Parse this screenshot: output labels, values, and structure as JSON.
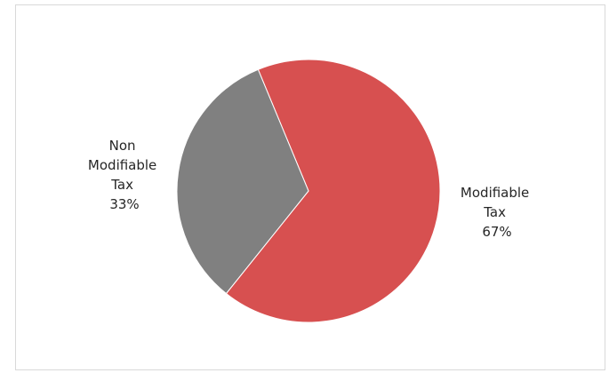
{
  "chart_data": {
    "type": "pie",
    "title": "",
    "slices": [
      {
        "name_lines": [
          "Modifiable",
          "Tax"
        ],
        "value": 67,
        "pct_label": "67%",
        "color": "#d75050"
      },
      {
        "name_lines": [
          "Non",
          "Modifiable",
          "Tax"
        ],
        "value": 33,
        "pct_label": "33%",
        "color": "#808080"
      }
    ],
    "legend": "none",
    "data_labels": "outside"
  }
}
